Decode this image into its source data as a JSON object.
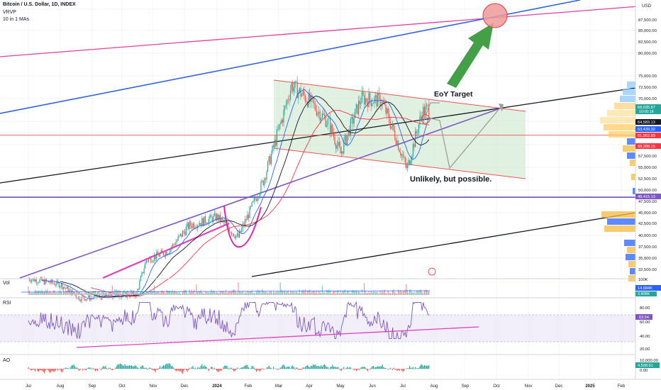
{
  "header": {
    "title": "Bitcoin / U.S. Dollar, 1D, INDEX",
    "indicator1": "VRVP",
    "indicator2": "10 in 1 MAs"
  },
  "axis": {
    "currency": "USD",
    "price_ticks": [
      "87,500.00",
      "85,000.00",
      "82,500.00",
      "80,000.00",
      "75,000.00",
      "72,500.00",
      "70,000.00",
      "60,000.00",
      "57,500.00",
      "55,000.00",
      "52,500.00",
      "50,000.00",
      "47,500.00",
      "45,000.00",
      "42,500.00",
      "40,000.00",
      "37,500.00",
      "35,000.00",
      "32,500.00"
    ],
    "time_ticks": [
      "Jul",
      "Aug",
      "Sep",
      "Oct",
      "Nov",
      "Dec",
      "2024",
      "Feb",
      "Mar",
      "Apr",
      "May",
      "Jun",
      "Jul",
      "Aug",
      "Sep",
      "Oct",
      "Nov",
      "Dec",
      "2025",
      "Feb"
    ]
  },
  "price_labels": [
    {
      "text": "68,035.97",
      "sub": "10:00:18",
      "color": "#26a69a"
    },
    {
      "text": "64,583.13",
      "color": "#131722"
    },
    {
      "text": "63,439.32",
      "color": "#2962ff"
    },
    {
      "text": "61,952.93",
      "color": "#f23645"
    },
    {
      "text": "59,288.15",
      "color": "#f23645"
    },
    {
      "text": "48,415.13",
      "color": "#7e57c2"
    }
  ],
  "annotations": {
    "target": "EoY Target",
    "warning": "Unlikely, but possible."
  },
  "volume": {
    "label": "Vol",
    "tick": "100K",
    "value": "14.684K",
    "value2": "3.908K"
  },
  "rsi": {
    "label": "RSI",
    "ticks": [
      "80.00",
      "60.00",
      "40.00",
      "20.00"
    ],
    "value": "63.54"
  },
  "ao": {
    "label": "AO",
    "ticks": [
      "10,000.00",
      "0.00"
    ],
    "value": "4,598.91"
  },
  "colors": {
    "up": "#26a69a",
    "down": "#ef5350",
    "ma_blue": "#2962ff",
    "ma_black": "#131722",
    "ma_red": "#f23645",
    "purple": "#7e57c2",
    "magenta": "#e91e8c",
    "channel_fill": "#c8e6c9"
  },
  "chart_data": {
    "type": "candlestick",
    "symbol": "BTCUSD",
    "interval": "1D",
    "ylim": [
      30000,
      95000
    ],
    "closes": [
      {
        "date": "2023-07-01",
        "close": 30500
      },
      {
        "date": "2023-08-01",
        "close": 29200
      },
      {
        "date": "2023-08-20",
        "close": 26100
      },
      {
        "date": "2023-09-15",
        "close": 26600
      },
      {
        "date": "2023-10-15",
        "close": 27000
      },
      {
        "date": "2023-10-25",
        "close": 34500
      },
      {
        "date": "2023-11-15",
        "close": 36500
      },
      {
        "date": "2023-12-05",
        "close": 42000
      },
      {
        "date": "2024-01-01",
        "close": 44000
      },
      {
        "date": "2024-01-22",
        "close": 39500
      },
      {
        "date": "2024-02-15",
        "close": 51800
      },
      {
        "date": "2024-03-05",
        "close": 66000
      },
      {
        "date": "2024-03-14",
        "close": 73000
      },
      {
        "date": "2024-04-01",
        "close": 69500
      },
      {
        "date": "2024-04-20",
        "close": 64500
      },
      {
        "date": "2024-05-01",
        "close": 58000
      },
      {
        "date": "2024-05-21",
        "close": 70000
      },
      {
        "date": "2024-06-10",
        "close": 69500
      },
      {
        "date": "2024-06-25",
        "close": 61000
      },
      {
        "date": "2024-07-05",
        "close": 54500
      },
      {
        "date": "2024-07-20",
        "close": 67000
      },
      {
        "date": "2024-07-28",
        "close": 68036
      }
    ],
    "horizontal_levels": [
      61952.93,
      48415.13
    ],
    "projection_target_price": 88500
  }
}
